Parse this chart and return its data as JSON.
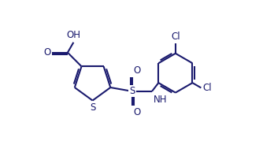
{
  "bg_color": "#ffffff",
  "bond_color": "#1a1a6e",
  "text_color": "#1a1a6e",
  "line_width": 1.5,
  "fig_width": 3.48,
  "fig_height": 1.84,
  "dpi": 100,
  "xlim": [
    0,
    10
  ],
  "ylim": [
    0,
    5.5
  ]
}
